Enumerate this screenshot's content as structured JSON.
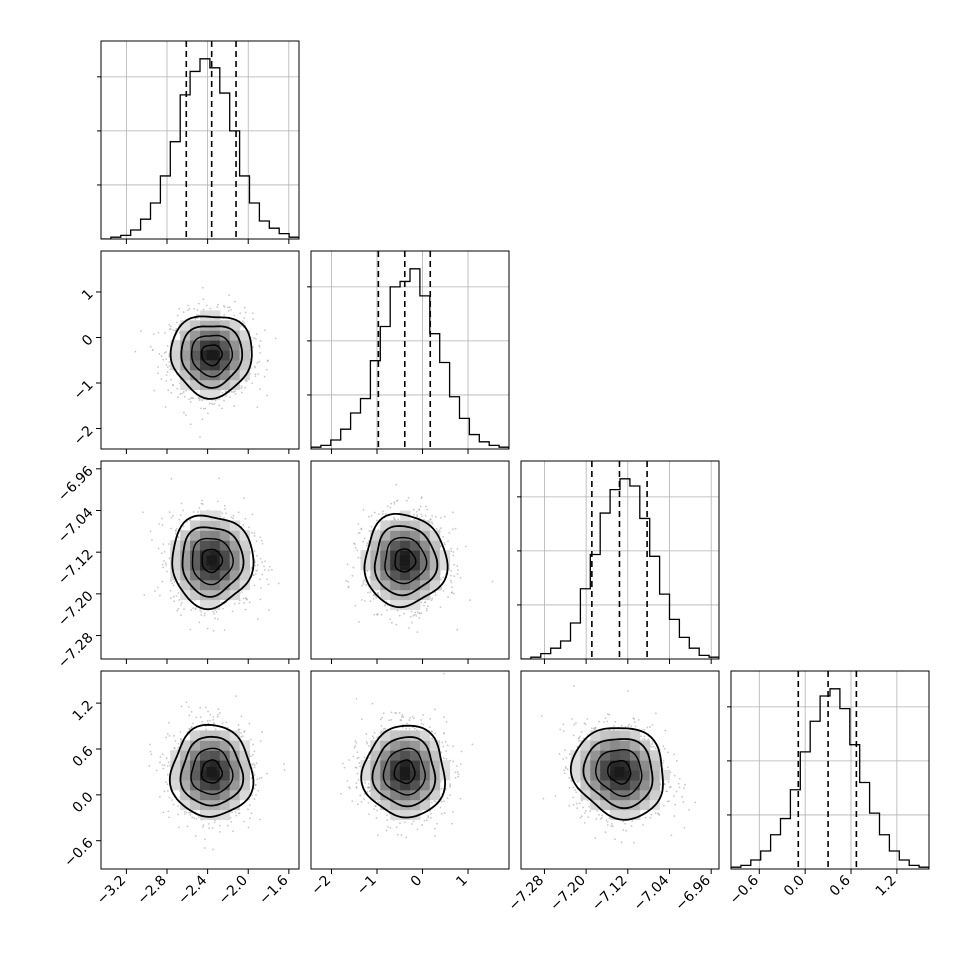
{
  "chart_data": {
    "type": "corner",
    "parameters": [
      {
        "range": [
          -3.45,
          -1.5
        ],
        "ticks": [
          -3.2,
          -2.8,
          -2.4,
          -2.0,
          -1.6
        ],
        "tick_labels": [
          "−3.2",
          "−2.8",
          "−2.4",
          "−2.0",
          "−1.6"
        ],
        "hist": [
          0,
          0.01,
          0.02,
          0.05,
          0.11,
          0.2,
          0.35,
          0.54,
          0.8,
          0.93,
          1.0,
          0.95,
          0.81,
          0.6,
          0.35,
          0.2,
          0.1,
          0.06,
          0.03,
          0.01
        ],
        "quantiles": [
          -2.61,
          -2.36,
          -2.12
        ]
      },
      {
        "range": [
          -2.45,
          1.9
        ],
        "ticks": [
          -2,
          -1,
          0,
          1
        ],
        "tick_labels": [
          "−2",
          "−1",
          "0",
          "1"
        ],
        "hist": [
          0.01,
          0.02,
          0.05,
          0.11,
          0.2,
          0.28,
          0.49,
          0.68,
          0.9,
          0.93,
          1.0,
          0.85,
          0.64,
          0.48,
          0.29,
          0.17,
          0.08,
          0.04,
          0.02,
          0.01
        ],
        "quantiles": [
          -0.97,
          -0.39,
          0.17
        ]
      },
      {
        "range": [
          -7.325,
          -6.945
        ],
        "ticks": [
          -7.28,
          -7.2,
          -7.12,
          -7.04,
          -6.96
        ],
        "tick_labels": [
          "−7.28",
          "−7.20",
          "−7.12",
          "−7.04",
          "−6.96"
        ],
        "hist": [
          0,
          0.01,
          0.03,
          0.06,
          0.1,
          0.2,
          0.39,
          0.58,
          0.81,
          0.94,
          1.0,
          0.96,
          0.78,
          0.57,
          0.36,
          0.22,
          0.12,
          0.06,
          0.02,
          0.01
        ],
        "quantiles": [
          -7.189,
          -7.136,
          -7.083
        ]
      },
      {
        "range": [
          -0.97,
          1.62
        ],
        "ticks": [
          -0.6,
          0.0,
          0.6,
          1.2
        ],
        "tick_labels": [
          "−0.6",
          "0.0",
          "0.6",
          "1.2"
        ],
        "hist": [
          0.01,
          0.02,
          0.05,
          0.1,
          0.19,
          0.28,
          0.44,
          0.65,
          0.82,
          0.96,
          1.0,
          0.89,
          0.69,
          0.48,
          0.31,
          0.19,
          0.1,
          0.05,
          0.02,
          0.01
        ],
        "quantiles": [
          -0.09,
          0.3,
          0.67
        ]
      }
    ],
    "pairs": [
      {
        "x": 0,
        "y": 1,
        "center": [
          -2.36,
          -0.38
        ],
        "std": [
          0.2,
          0.45
        ],
        "rho": 0
      },
      {
        "x": 0,
        "y": 2,
        "center": [
          -2.36,
          -7.136
        ],
        "std": [
          0.2,
          0.044
        ],
        "rho": 0
      },
      {
        "x": 1,
        "y": 2,
        "center": [
          -0.39,
          -7.136
        ],
        "std": [
          0.45,
          0.044
        ],
        "rho": 0
      },
      {
        "x": 0,
        "y": 3,
        "center": [
          -2.36,
          0.3
        ],
        "std": [
          0.2,
          0.3
        ],
        "rho": 0
      },
      {
        "x": 1,
        "y": 3,
        "center": [
          -0.39,
          0.3
        ],
        "std": [
          0.45,
          0.3
        ],
        "rho": 0
      },
      {
        "x": 2,
        "y": 3,
        "center": [
          -7.136,
          0.3
        ],
        "std": [
          0.044,
          0.3
        ],
        "rho": -0.1
      }
    ],
    "contour_sigma_levels": [
      0.5,
      1.0,
      1.5,
      2.0
    ],
    "grid": true,
    "colors": {
      "line": "#000000",
      "grid": "#b0b0b0",
      "points": "#9a9a9a",
      "density_max": "#1a1a1a"
    }
  }
}
